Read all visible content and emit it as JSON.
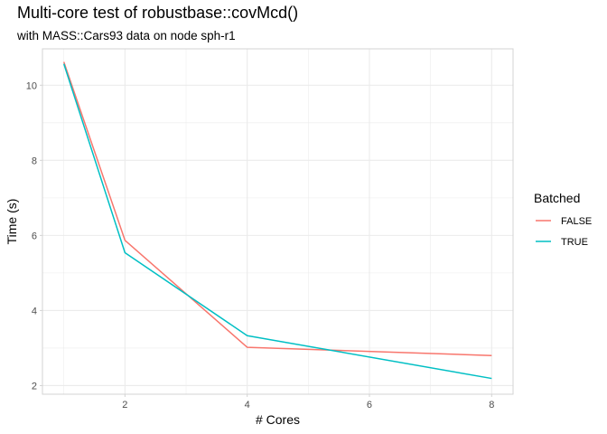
{
  "chart_data": {
    "type": "line",
    "title": "Multi-core test of robustbase::covMcd()",
    "subtitle": "with MASS::Cars93 data on node sph-r1",
    "xlabel": "# Cores",
    "ylabel": "Time (s)",
    "xlim": [
      0.65,
      8.35
    ],
    "ylim": [
      1.77,
      10.97
    ],
    "x_ticks": [
      2,
      4,
      6,
      8
    ],
    "y_ticks": [
      2,
      4,
      6,
      8,
      10
    ],
    "grid": true,
    "legend": {
      "title": "Batched",
      "position": "right"
    },
    "series": [
      {
        "name": "FALSE",
        "color": "#F8766D",
        "x": [
          1,
          2,
          4,
          8
        ],
        "y": [
          10.62,
          5.87,
          3.02,
          2.8
        ]
      },
      {
        "name": "TRUE",
        "color": "#00BFC4",
        "x": [
          1,
          2,
          4,
          8
        ],
        "y": [
          10.57,
          5.54,
          3.33,
          2.19
        ]
      }
    ]
  }
}
